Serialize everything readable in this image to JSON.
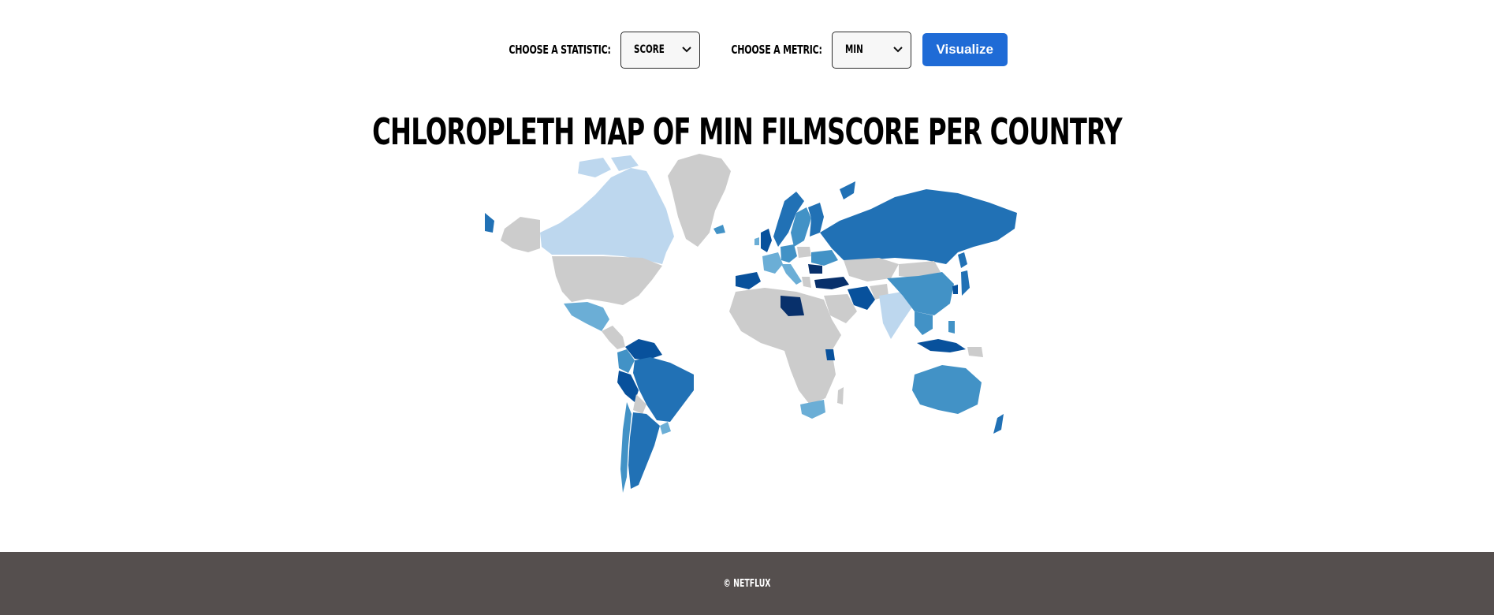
{
  "controls": {
    "statistic_label": "Choose a statistic:",
    "statistic_value": "Score",
    "metric_label": "Choose a metric:",
    "metric_value": "Min",
    "button_label": "Visualize",
    "button_color": "#1f6bd6"
  },
  "map": {
    "title": "Chloropleth Map of Min Filmscore per Country",
    "no_data_color": "#cccccc",
    "palette": [
      "#bdd7ee",
      "#6baed6",
      "#4292c6",
      "#2171b5",
      "#08519c",
      "#08306b"
    ]
  },
  "footer": {
    "copyright": "© Netflux",
    "background": "#554f4e"
  }
}
